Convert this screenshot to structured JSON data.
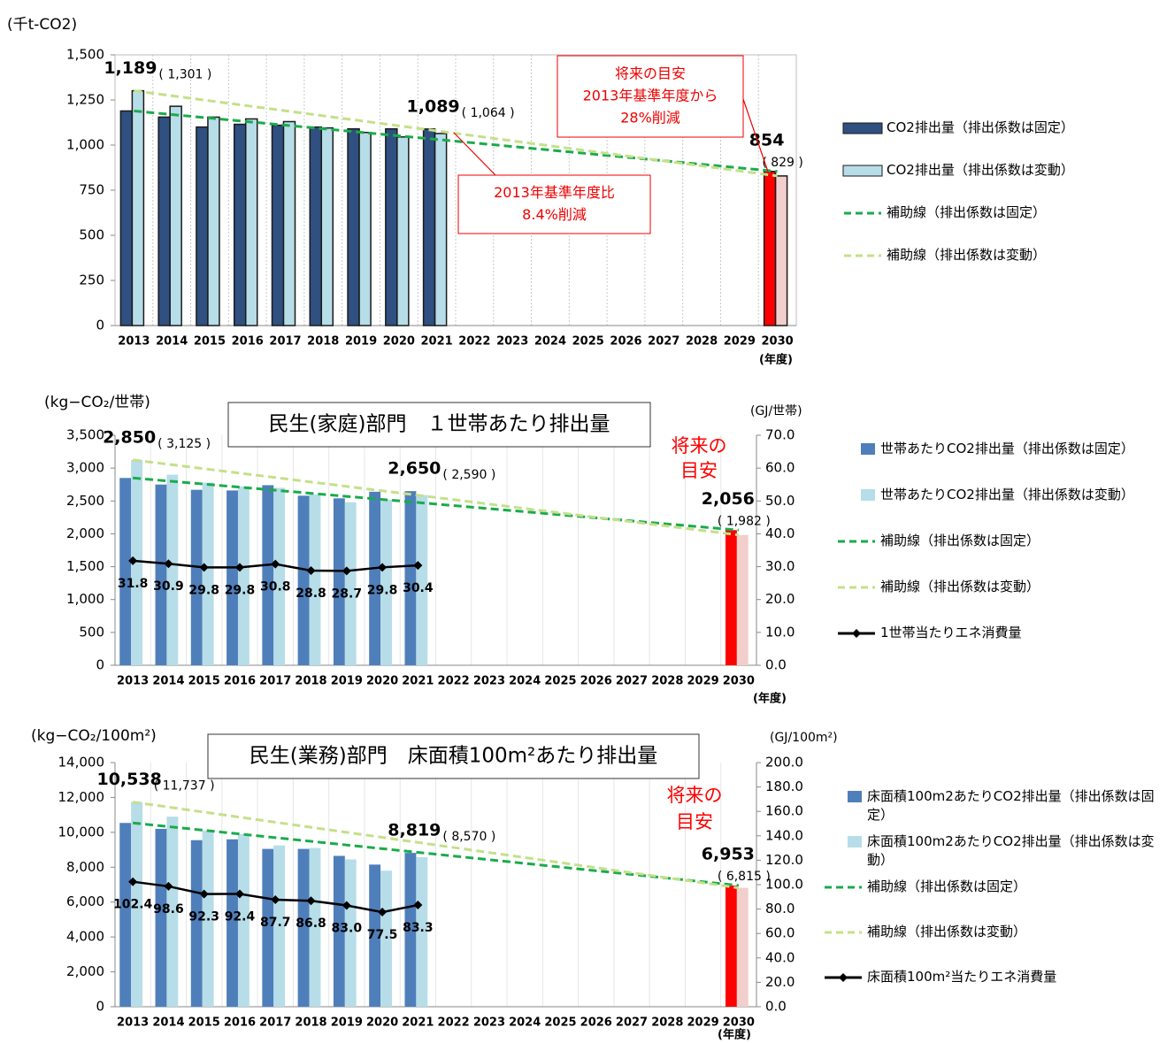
{
  "chart_data": [
    {
      "type": "bar",
      "y_label": "(千t-CO2)",
      "x_unit": "(年度)",
      "categories": [
        "2013",
        "2014",
        "2015",
        "2016",
        "2017",
        "2018",
        "2019",
        "2020",
        "2021",
        "2022",
        "2023",
        "2024",
        "2025",
        "2026",
        "2027",
        "2028",
        "2029",
        "2030"
      ],
      "series": [
        {
          "name": "CO2排出量（排出係数は固定）",
          "color": "#2f5080",
          "target_color": "#ff0000",
          "values": [
            1189,
            1155,
            1100,
            1115,
            1110,
            1100,
            1090,
            1090,
            1089,
            null,
            null,
            null,
            null,
            null,
            null,
            null,
            null,
            854
          ],
          "value_labels": [
            "1,189",
            null,
            null,
            null,
            null,
            null,
            null,
            null,
            "1,089",
            null,
            null,
            null,
            null,
            null,
            null,
            null,
            null,
            "854"
          ]
        },
        {
          "name": "CO2排出量（排出係数は変動）",
          "color": "#b7dde8",
          "target_color": "#f2cfcc",
          "values": [
            1301,
            1215,
            1155,
            1145,
            1130,
            1095,
            1070,
            1045,
            1064,
            null,
            null,
            null,
            null,
            null,
            null,
            null,
            null,
            829
          ],
          "value_labels": [
            "( 1,301 )",
            null,
            null,
            null,
            null,
            null,
            null,
            null,
            "( 1,064 )",
            null,
            null,
            null,
            null,
            null,
            null,
            null,
            null,
            "( 829 )"
          ]
        },
        {
          "name": "補助線（排出係数は固定）",
          "type": "line",
          "dashed": true,
          "color": "#1aab4b",
          "x": [
            "2013",
            "2030"
          ],
          "values": [
            1189,
            854
          ]
        },
        {
          "name": "補助線（排出係数は変動）",
          "type": "line",
          "dashed": true,
          "color": "#c4e08a",
          "x": [
            "2013",
            "2030"
          ],
          "values": [
            1301,
            829
          ]
        }
      ],
      "ylim": [
        0,
        1500
      ],
      "yticks": [
        0,
        250,
        500,
        750,
        {
          "value": 1000,
          "label": "1,000"
        },
        {
          "value": 1250,
          "label": "1,250"
        },
        {
          "value": 1500,
          "label": "1,500"
        }
      ],
      "annotations": [
        {
          "lines": [
            "将来の目安",
            "2013年基準年度から",
            "28%削減"
          ]
        },
        {
          "lines": [
            "2013年基準年度比",
            "8.4%削減"
          ]
        }
      ]
    },
    {
      "type": "bar",
      "title": "民生(家庭)部門　１世帯あたり排出量",
      "y_label": "(kg−CO₂/世帯)",
      "y2_label": "(GJ/世帯)",
      "x_unit": "(年度)",
      "categories": [
        "2013",
        "2014",
        "2015",
        "2016",
        "2017",
        "2018",
        "2019",
        "2020",
        "2021",
        "2022",
        "2023",
        "2024",
        "2025",
        "2026",
        "2027",
        "2028",
        "2029",
        "2030"
      ],
      "series": [
        {
          "name": "世帯あたりCO2排出量（排出係数は固定）",
          "color": "#4f7fba",
          "target_color": "#ff0000",
          "values": [
            2850,
            2750,
            2670,
            2660,
            2740,
            2580,
            2540,
            2640,
            2650,
            null,
            null,
            null,
            null,
            null,
            null,
            null,
            null,
            2056
          ],
          "value_labels": [
            "2,850",
            null,
            null,
            null,
            null,
            null,
            null,
            null,
            "2,650",
            null,
            null,
            null,
            null,
            null,
            null,
            null,
            null,
            "2,056"
          ]
        },
        {
          "name": "世帯あたりCO2排出量（排出係数は変動）",
          "color": "#b7dde8",
          "target_color": "#f2cfcc",
          "values": [
            3125,
            2900,
            2780,
            2720,
            2700,
            2600,
            2480,
            2520,
            2590,
            null,
            null,
            null,
            null,
            null,
            null,
            null,
            null,
            1982
          ],
          "value_labels": [
            "( 3,125 )",
            null,
            null,
            null,
            null,
            null,
            null,
            null,
            "( 2,590 )",
            null,
            null,
            null,
            null,
            null,
            null,
            null,
            null,
            "( 1,982 )"
          ]
        },
        {
          "name": "補助線（排出係数は固定）",
          "type": "line",
          "dashed": true,
          "color": "#1aab4b",
          "x": [
            "2013",
            "2030"
          ],
          "values": [
            2850,
            2056
          ]
        },
        {
          "name": "補助線（排出係数は変動）",
          "type": "line",
          "dashed": true,
          "color": "#c4e08a",
          "x": [
            "2013",
            "2030"
          ],
          "values": [
            3125,
            1982
          ]
        },
        {
          "name": "1世帯当たりエネ消費量",
          "type": "line",
          "axis": "y2",
          "color": "#000000",
          "marker": "diamond",
          "values": [
            31.8,
            30.9,
            29.8,
            29.8,
            30.8,
            28.8,
            28.7,
            29.8,
            30.4,
            null,
            null,
            null,
            null,
            null,
            null,
            null,
            null,
            null
          ],
          "value_labels": [
            "31.8",
            "30.9",
            "29.8",
            "29.8",
            "30.8",
            "28.8",
            "28.7",
            "29.8",
            "30.4",
            null,
            null,
            null,
            null,
            null,
            null,
            null,
            null,
            null
          ]
        }
      ],
      "ylim": [
        0,
        3500
      ],
      "yticks": [
        0,
        500,
        {
          "value": 1000,
          "label": "1,000"
        },
        {
          "value": 1500,
          "label": "1,500"
        },
        {
          "value": 2000,
          "label": "2,000"
        },
        {
          "value": 2500,
          "label": "2,500"
        },
        {
          "value": 3000,
          "label": "3,000"
        },
        {
          "value": 3500,
          "label": "3,500"
        }
      ],
      "y2lim": [
        0,
        70
      ],
      "y2ticks": [
        {
          "value": 0,
          "label": "0.0"
        },
        {
          "value": 10,
          "label": "10.0"
        },
        {
          "value": 20,
          "label": "20.0"
        },
        {
          "value": 30,
          "label": "30.0"
        },
        {
          "value": 40,
          "label": "40.0"
        },
        {
          "value": 50,
          "label": "50.0"
        },
        {
          "value": 60,
          "label": "60.0"
        },
        {
          "value": 70,
          "label": "70.0"
        }
      ],
      "annotations": [
        {
          "lines": [
            "将来の",
            "目安"
          ]
        }
      ]
    },
    {
      "type": "bar",
      "title": "民生(業務)部門　床面積100m²あたり排出量",
      "y_label": "(kg−CO₂/100m²)",
      "y2_label": "(GJ/100m²)",
      "x_unit": "(年度)",
      "categories": [
        "2013",
        "2014",
        "2015",
        "2016",
        "2017",
        "2018",
        "2019",
        "2020",
        "2021",
        "2022",
        "2023",
        "2024",
        "2025",
        "2026",
        "2027",
        "2028",
        "2029",
        "2030"
      ],
      "series": [
        {
          "name": "床面積100m2あたりCO2排出量（排出係数は固定）",
          "color": "#4f7fba",
          "target_color": "#ff0000",
          "values": [
            10538,
            10200,
            9550,
            9600,
            9050,
            9050,
            8650,
            8150,
            8819,
            null,
            null,
            null,
            null,
            null,
            null,
            null,
            null,
            6953
          ],
          "value_labels": [
            "10,538",
            null,
            null,
            null,
            null,
            null,
            null,
            null,
            "8,819",
            null,
            null,
            null,
            null,
            null,
            null,
            null,
            null,
            "6,953"
          ]
        },
        {
          "name": "床面積100m2あたりCO2排出量（排出係数は変動）",
          "color": "#b7dde8",
          "target_color": "#f2cfcc",
          "values": [
            11737,
            10900,
            10100,
            9900,
            9250,
            9100,
            8450,
            7800,
            8570,
            null,
            null,
            null,
            null,
            null,
            null,
            null,
            null,
            6815
          ],
          "value_labels": [
            "( 11,737 )",
            null,
            null,
            null,
            null,
            null,
            null,
            null,
            "( 8,570 )",
            null,
            null,
            null,
            null,
            null,
            null,
            null,
            null,
            "( 6,815 )"
          ]
        },
        {
          "name": "補助線（排出係数は固定）",
          "type": "line",
          "dashed": true,
          "color": "#1aab4b",
          "x": [
            "2013",
            "2030"
          ],
          "values": [
            10538,
            6953
          ]
        },
        {
          "name": "補助線（排出係数は変動）",
          "type": "line",
          "dashed": true,
          "color": "#c4e08a",
          "x": [
            "2013",
            "2030"
          ],
          "values": [
            11737,
            6815
          ]
        },
        {
          "name": "床面積100m²当たりエネ消費量",
          "type": "line",
          "axis": "y2",
          "color": "#000000",
          "marker": "diamond",
          "values": [
            102.4,
            98.6,
            92.3,
            92.4,
            87.7,
            86.8,
            83.0,
            77.5,
            83.3,
            null,
            null,
            null,
            null,
            null,
            null,
            null,
            null,
            null
          ],
          "value_labels": [
            "102.4",
            "98.6",
            "92.3",
            "92.4",
            "87.7",
            "86.8",
            "83.0",
            "77.5",
            "83.3",
            null,
            null,
            null,
            null,
            null,
            null,
            null,
            null,
            null
          ]
        }
      ],
      "ylim": [
        0,
        14000
      ],
      "yticks": [
        0,
        {
          "value": 2000,
          "label": "2,000"
        },
        {
          "value": 4000,
          "label": "4,000"
        },
        {
          "value": 6000,
          "label": "6,000"
        },
        {
          "value": 8000,
          "label": "8,000"
        },
        {
          "value": 10000,
          "label": "10,000"
        },
        {
          "value": 12000,
          "label": "12,000"
        },
        {
          "value": 14000,
          "label": "14,000"
        }
      ],
      "y2lim": [
        0,
        200
      ],
      "y2ticks": [
        {
          "value": 0,
          "label": "0.0"
        },
        {
          "value": 20,
          "label": "20.0"
        },
        {
          "value": 40,
          "label": "40.0"
        },
        {
          "value": 60,
          "label": "60.0"
        },
        {
          "value": 80,
          "label": "80.0"
        },
        {
          "value": 100,
          "label": "100.0"
        },
        {
          "value": 120,
          "label": "120.0"
        },
        {
          "value": 140,
          "label": "140.0"
        },
        {
          "value": 160,
          "label": "160.0"
        },
        {
          "value": 180,
          "label": "180.0"
        },
        {
          "value": 200,
          "label": "200.0"
        }
      ],
      "annotations": [
        {
          "lines": [
            "将来の",
            "目安"
          ]
        }
      ]
    }
  ]
}
